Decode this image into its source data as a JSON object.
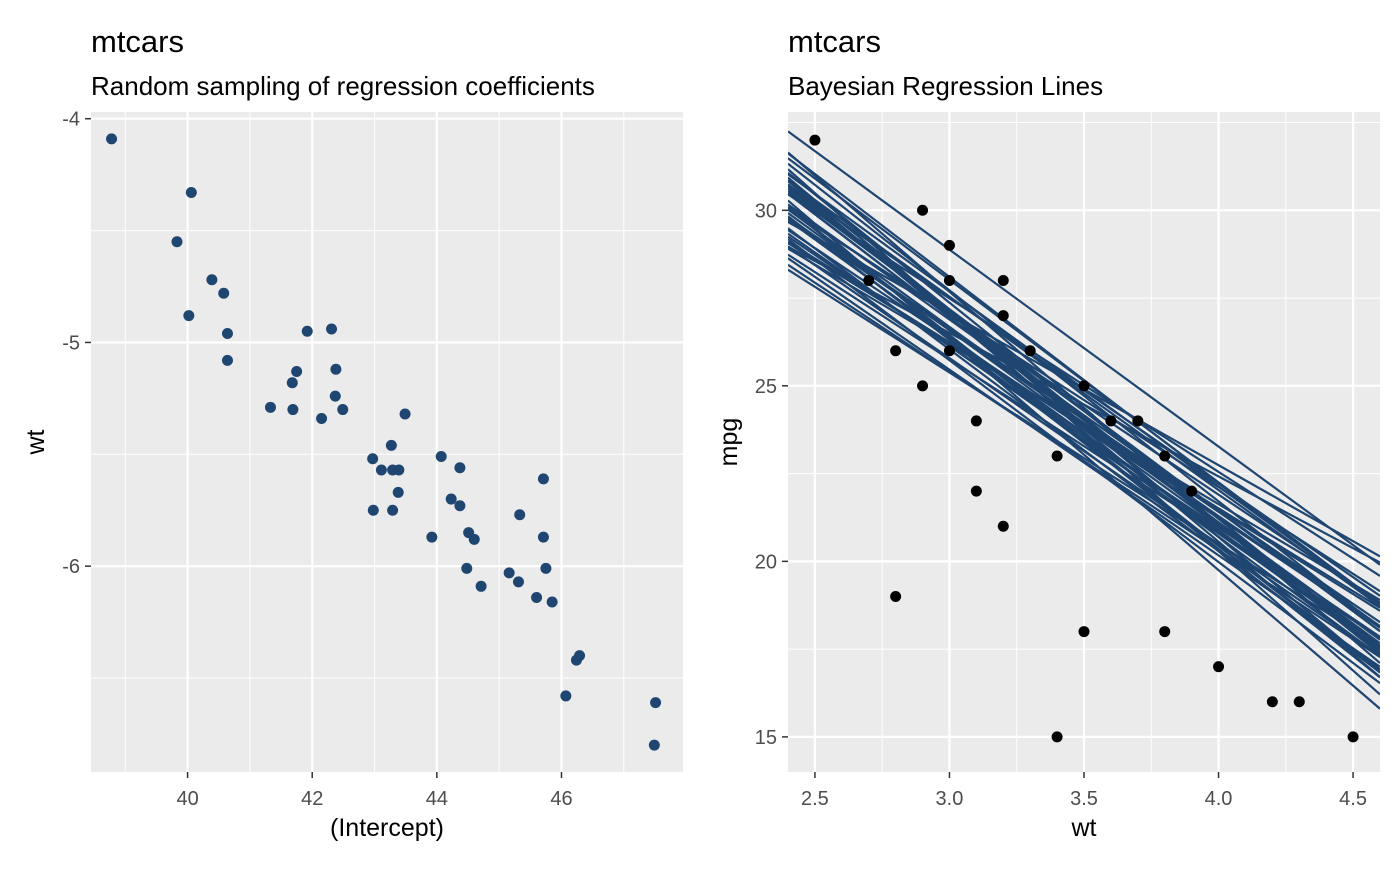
{
  "colors": {
    "panel_background": "#EBEBEB",
    "grid": "#FFFFFF",
    "sample_points": "#1F4571",
    "regression_lines": "#1F4571",
    "data_points": "#000000",
    "tick_text": "#4D4D4D"
  },
  "chart_data": [
    {
      "type": "scatter",
      "title": "mtcars",
      "subtitle": "Random sampling of regression coefficients",
      "xlabel": "(Intercept)",
      "ylabel": "wt",
      "xlim": [
        38.45,
        47.95
      ],
      "ylim": [
        -6.92,
        -3.97
      ],
      "xticks": [
        40,
        42,
        44,
        46
      ],
      "xtick_labels": [
        "40",
        "42",
        "44",
        "46"
      ],
      "yticks": [
        -4,
        -5,
        -6
      ],
      "ytick_labels": [
        "-4",
        "-5",
        "-6"
      ],
      "grid": true,
      "point_color": "#1F4571",
      "points": [
        [
          38.78,
          -4.09
        ],
        [
          40.06,
          -4.33
        ],
        [
          39.83,
          -4.55
        ],
        [
          40.39,
          -4.72
        ],
        [
          40.58,
          -4.78
        ],
        [
          40.02,
          -4.88
        ],
        [
          40.64,
          -4.96
        ],
        [
          40.64,
          -5.08
        ],
        [
          41.33,
          -5.29
        ],
        [
          41.68,
          -5.18
        ],
        [
          41.75,
          -5.13
        ],
        [
          41.69,
          -5.3
        ],
        [
          41.92,
          -4.95
        ],
        [
          42.31,
          -4.94
        ],
        [
          42.38,
          -5.12
        ],
        [
          42.37,
          -5.24
        ],
        [
          42.49,
          -5.3
        ],
        [
          42.15,
          -5.34
        ],
        [
          43.49,
          -5.32
        ],
        [
          43.27,
          -5.46
        ],
        [
          42.97,
          -5.52
        ],
        [
          43.11,
          -5.57
        ],
        [
          43.29,
          -5.57
        ],
        [
          43.39,
          -5.57
        ],
        [
          43.38,
          -5.67
        ],
        [
          42.98,
          -5.75
        ],
        [
          43.29,
          -5.75
        ],
        [
          44.07,
          -5.51
        ],
        [
          44.37,
          -5.56
        ],
        [
          44.23,
          -5.7
        ],
        [
          44.37,
          -5.73
        ],
        [
          43.92,
          -5.87
        ],
        [
          44.51,
          -5.85
        ],
        [
          44.6,
          -5.88
        ],
        [
          44.48,
          -6.01
        ],
        [
          44.71,
          -6.09
        ],
        [
          45.33,
          -5.77
        ],
        [
          45.71,
          -5.61
        ],
        [
          45.71,
          -5.87
        ],
        [
          45.75,
          -6.01
        ],
        [
          45.16,
          -6.03
        ],
        [
          45.31,
          -6.07
        ],
        [
          45.6,
          -6.14
        ],
        [
          45.85,
          -6.16
        ],
        [
          46.29,
          -6.4
        ],
        [
          46.24,
          -6.42
        ],
        [
          46.07,
          -6.58
        ],
        [
          47.51,
          -6.61
        ],
        [
          47.49,
          -6.8
        ]
      ]
    },
    {
      "type": "scatter",
      "title": "mtcars",
      "subtitle": "Bayesian Regression Lines",
      "xlabel": "wt",
      "ylabel": "mpg",
      "xlim": [
        2.4,
        4.6
      ],
      "ylim": [
        14.0,
        32.8
      ],
      "xticks": [
        2.5,
        3.0,
        3.5,
        4.0,
        4.5
      ],
      "xtick_labels": [
        "2.5",
        "3.0",
        "3.5",
        "4.0",
        "4.5"
      ],
      "yticks": [
        15,
        20,
        25,
        30
      ],
      "ytick_labels": [
        "15",
        "20",
        "25",
        "30"
      ],
      "grid": true,
      "point_color": "#000000",
      "line_color": "#1F4571",
      "points": [
        [
          2.5,
          32
        ],
        [
          2.7,
          28
        ],
        [
          2.8,
          26
        ],
        [
          2.8,
          19
        ],
        [
          2.9,
          30
        ],
        [
          2.9,
          25
        ],
        [
          3.0,
          29
        ],
        [
          3.0,
          28
        ],
        [
          3.0,
          26
        ],
        [
          3.1,
          24
        ],
        [
          3.1,
          22
        ],
        [
          3.2,
          28
        ],
        [
          3.2,
          27
        ],
        [
          3.2,
          21
        ],
        [
          3.3,
          26
        ],
        [
          3.4,
          23
        ],
        [
          3.4,
          15
        ],
        [
          3.5,
          25
        ],
        [
          3.5,
          18
        ],
        [
          3.6,
          24
        ],
        [
          3.7,
          24
        ],
        [
          3.8,
          23
        ],
        [
          3.8,
          18
        ],
        [
          3.9,
          22
        ],
        [
          4.0,
          17
        ],
        [
          4.2,
          16
        ],
        [
          4.3,
          16
        ],
        [
          4.5,
          15
        ]
      ],
      "regression_lines": [
        {
          "intercept": 38.78,
          "slope": -4.09
        },
        {
          "intercept": 40.06,
          "slope": -4.33
        },
        {
          "intercept": 39.83,
          "slope": -4.55
        },
        {
          "intercept": 40.39,
          "slope": -4.72
        },
        {
          "intercept": 40.58,
          "slope": -4.78
        },
        {
          "intercept": 40.02,
          "slope": -4.88
        },
        {
          "intercept": 40.64,
          "slope": -4.96
        },
        {
          "intercept": 40.64,
          "slope": -5.08
        },
        {
          "intercept": 41.33,
          "slope": -5.29
        },
        {
          "intercept": 41.68,
          "slope": -5.18
        },
        {
          "intercept": 41.75,
          "slope": -5.13
        },
        {
          "intercept": 41.69,
          "slope": -5.3
        },
        {
          "intercept": 41.92,
          "slope": -4.95
        },
        {
          "intercept": 42.31,
          "slope": -4.94
        },
        {
          "intercept": 42.38,
          "slope": -5.12
        },
        {
          "intercept": 42.37,
          "slope": -5.24
        },
        {
          "intercept": 42.49,
          "slope": -5.3
        },
        {
          "intercept": 42.15,
          "slope": -5.34
        },
        {
          "intercept": 43.49,
          "slope": -5.32
        },
        {
          "intercept": 43.27,
          "slope": -5.46
        },
        {
          "intercept": 42.97,
          "slope": -5.52
        },
        {
          "intercept": 43.11,
          "slope": -5.57
        },
        {
          "intercept": 43.29,
          "slope": -5.57
        },
        {
          "intercept": 43.39,
          "slope": -5.57
        },
        {
          "intercept": 43.38,
          "slope": -5.67
        },
        {
          "intercept": 42.98,
          "slope": -5.75
        },
        {
          "intercept": 43.29,
          "slope": -5.75
        },
        {
          "intercept": 44.07,
          "slope": -5.51
        },
        {
          "intercept": 44.37,
          "slope": -5.56
        },
        {
          "intercept": 44.23,
          "slope": -5.7
        },
        {
          "intercept": 44.37,
          "slope": -5.73
        },
        {
          "intercept": 43.92,
          "slope": -5.87
        },
        {
          "intercept": 44.51,
          "slope": -5.85
        },
        {
          "intercept": 44.6,
          "slope": -5.88
        },
        {
          "intercept": 44.48,
          "slope": -6.01
        },
        {
          "intercept": 44.71,
          "slope": -6.09
        },
        {
          "intercept": 45.33,
          "slope": -5.77
        },
        {
          "intercept": 45.71,
          "slope": -5.61
        },
        {
          "intercept": 45.71,
          "slope": -5.87
        },
        {
          "intercept": 45.75,
          "slope": -6.01
        },
        {
          "intercept": 45.16,
          "slope": -6.03
        },
        {
          "intercept": 45.31,
          "slope": -6.07
        },
        {
          "intercept": 45.6,
          "slope": -6.14
        },
        {
          "intercept": 45.85,
          "slope": -6.16
        },
        {
          "intercept": 46.29,
          "slope": -6.4
        },
        {
          "intercept": 46.24,
          "slope": -6.42
        },
        {
          "intercept": 46.07,
          "slope": -6.58
        },
        {
          "intercept": 47.51,
          "slope": -6.61
        },
        {
          "intercept": 47.49,
          "slope": -6.8
        }
      ]
    }
  ]
}
